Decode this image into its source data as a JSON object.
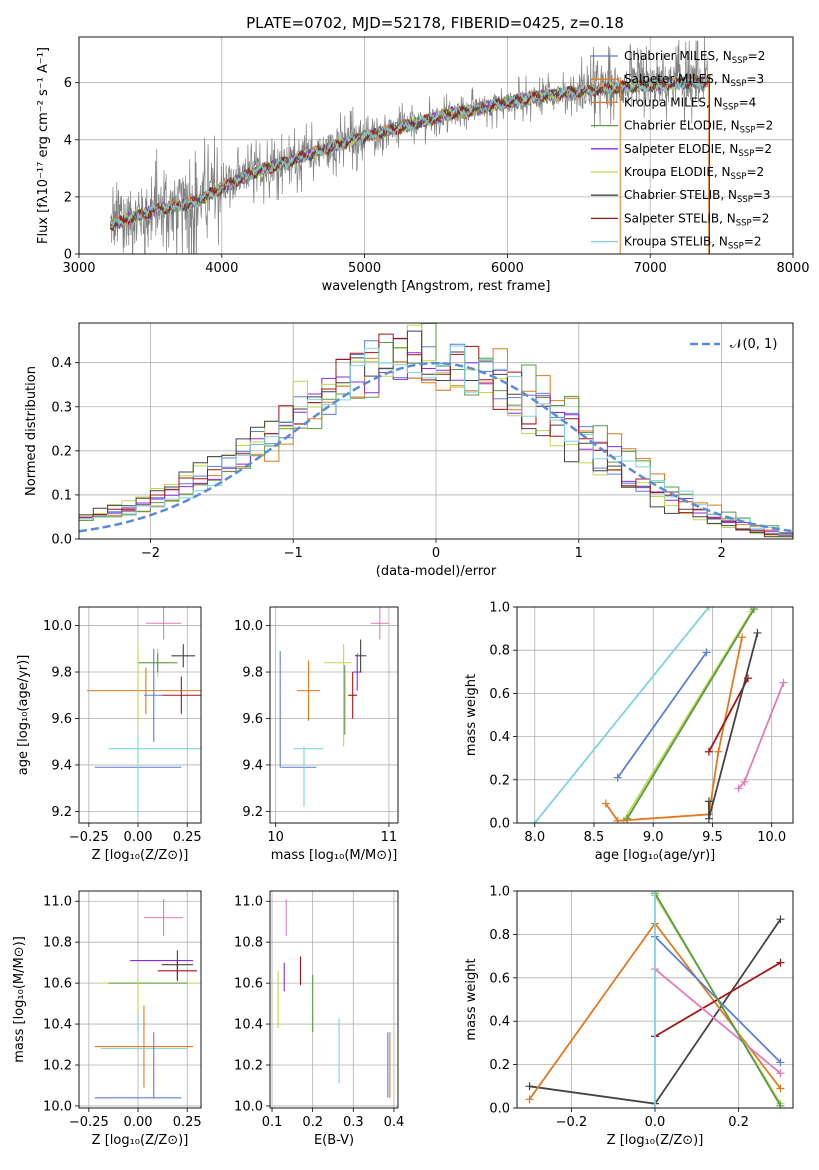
{
  "figure_title": "PLATE=0702, MJD=52178, FIBERID=0425, z=0.18",
  "colors": {
    "blue": "#5b7fd6",
    "orange": "#e07a1f",
    "green": "#5a9a4a",
    "purple": "#8a2be2",
    "yellowgreen": "#bcd94a",
    "darkgray": "#444444",
    "darkred": "#a31515",
    "cyan": "#7fd3dc",
    "pink": "#e27cb7",
    "gray": "#808080",
    "normal": "#5b8bd9"
  },
  "legend_entries": [
    {
      "text": "Chabrier MILES, N",
      "sub": "SSP",
      "tail": "=2",
      "color": "blue"
    },
    {
      "text": "Salpeter MILES, N",
      "sub": "SSP",
      "tail": "=3",
      "color": "orange"
    },
    {
      "text": "Kroupa MILES, N",
      "sub": "SSP",
      "tail": "=4",
      "color": "orange"
    },
    {
      "text": "Chabrier ELODIE, N",
      "sub": "SSP",
      "tail": "=2",
      "color": "green"
    },
    {
      "text": "Salpeter ELODIE, N",
      "sub": "SSP",
      "tail": "=2",
      "color": "purple"
    },
    {
      "text": "Kroupa ELODIE, N",
      "sub": "SSP",
      "tail": "=2",
      "color": "yellowgreen"
    },
    {
      "text": "Chabrier STELIB, N",
      "sub": "SSP",
      "tail": "=3",
      "color": "darkgray"
    },
    {
      "text": "Salpeter STELIB, N",
      "sub": "SSP",
      "tail": "=2",
      "color": "darkred"
    },
    {
      "text": "Kroupa STELIB, N",
      "sub": "SSP",
      "tail": "=2",
      "color": "cyan"
    }
  ],
  "chart_data": [
    {
      "id": "spectrum",
      "type": "line",
      "xlabel": "wavelength [Angstrom, rest frame]",
      "ylabel": "Flux [fλ10⁻¹⁷ erg cm⁻² s⁻¹ A⁻¹]",
      "xlim": [
        3000,
        8000
      ],
      "ylim": [
        0,
        7.6
      ],
      "xticks": [
        3000,
        4000,
        5000,
        6000,
        7000,
        8000
      ],
      "yticks": [
        0,
        2,
        4,
        6
      ],
      "continuum": {
        "x": [
          3220,
          3500,
          3800,
          4000,
          4200,
          4500,
          4800,
          5000,
          5300,
          5600,
          5900,
          6200,
          6500,
          6800,
          7100,
          7400
        ],
        "y": [
          1.0,
          1.5,
          1.8,
          2.3,
          2.8,
          3.3,
          3.8,
          4.1,
          4.5,
          4.9,
          5.2,
          5.5,
          5.7,
          5.85,
          5.95,
          6.05
        ]
      },
      "series_colors": [
        "blue",
        "orange",
        "orange",
        "green",
        "purple",
        "yellowgreen",
        "darkgray",
        "darkred",
        "cyan"
      ]
    },
    {
      "id": "residuals",
      "type": "histogram",
      "xlabel": "(data-model)/error",
      "ylabel": "Normed distribution",
      "xlim": [
        -2.5,
        2.5
      ],
      "ylim": [
        0,
        0.49
      ],
      "xticks": [
        -2,
        -1,
        0,
        1,
        2
      ],
      "yticks": [
        0.0,
        0.1,
        0.2,
        0.3,
        0.4
      ],
      "reference_label": "𝒩(0, 1)",
      "series_colors": [
        "blue",
        "orange",
        "green",
        "purple",
        "yellowgreen",
        "darkgray",
        "darkred",
        "cyan"
      ]
    },
    {
      "id": "age_vs_Z",
      "type": "scatter",
      "xlabel": "Z [log₁₀(Z/Z⊙)]",
      "ylabel": "age  [log₁₀(age/yr)]",
      "xlim": [
        -0.3,
        0.32
      ],
      "ylim": [
        9.15,
        10.08
      ],
      "xticks": [
        -0.25,
        0.0,
        0.25
      ],
      "ytick": [
        9.2,
        9.4,
        9.6,
        9.8,
        10.0
      ],
      "points": [
        {
          "color": "pink",
          "x": 0.13,
          "xerr": 0.09,
          "y": 10.01,
          "yerr": 0.07
        },
        {
          "color": "darkgray",
          "x": 0.23,
          "xerr": 0.06,
          "y": 9.87,
          "yerr": 0.05
        },
        {
          "color": "yellowgreen",
          "x": 0.1,
          "xerr": 0.1,
          "y": 9.84,
          "yerr": 0.06
        },
        {
          "color": "green",
          "x": 0.1,
          "xerr": 0.1,
          "y": 9.84,
          "yerr": 0.04
        },
        {
          "color": "orange",
          "x": 0.04,
          "xerr": 0.3,
          "y": 9.72,
          "yerr": 0.1
        },
        {
          "color": "darkred",
          "x": 0.22,
          "xerr": 0.1,
          "y": 9.7,
          "yerr": 0.08
        },
        {
          "color": "blue",
          "x": 0.08,
          "xerr": 0.05,
          "y": 9.7,
          "yerr": 0.2
        },
        {
          "color": "cyan",
          "x": 0.1,
          "xerr": 0.25,
          "y": 9.47,
          "yerr": 0.0
        },
        {
          "color": "blue",
          "x": 0.0,
          "xerr": 0.22,
          "y": 9.39,
          "yerr": 0.0
        },
        {
          "color": "cyan",
          "x": 0.0,
          "xerr": 0.0,
          "y": 9.35,
          "yerr": 0.17
        },
        {
          "color": "yellowgreen",
          "x": 0.0,
          "xerr": 0.0,
          "y": 9.75,
          "yerr": 0.17
        }
      ]
    },
    {
      "id": "age_vs_mass",
      "type": "scatter",
      "xlabel": "mass [log₁₀(M/M⊙)]",
      "ylabel": "",
      "xlim": [
        9.95,
        11.08
      ],
      "ylim": [
        9.15,
        10.08
      ],
      "xticks": [
        10,
        11
      ],
      "yticks": [
        9.2,
        9.4,
        9.6,
        9.8,
        10.0
      ],
      "points": [
        {
          "color": "pink",
          "x": 10.92,
          "xerr": 0.08,
          "y": 10.01,
          "yerr": 0.07
        },
        {
          "color": "blue",
          "x": 10.04,
          "xerr": 0.0,
          "y": 9.64,
          "yerr": 0.25
        },
        {
          "color": "blue",
          "x": 10.2,
          "xerr": 0.16,
          "y": 9.39,
          "yerr": 0.0
        },
        {
          "color": "orange",
          "x": 10.29,
          "xerr": 0.1,
          "y": 9.72,
          "yerr": 0.13
        },
        {
          "color": "cyan",
          "x": 10.29,
          "xerr": 0.13,
          "y": 9.47,
          "yerr": 0.0
        },
        {
          "color": "cyan",
          "x": 10.25,
          "xerr": 0.0,
          "y": 9.35,
          "yerr": 0.13
        },
        {
          "color": "yellowgreen",
          "x": 10.55,
          "xerr": 0.12,
          "y": 9.84,
          "yerr": 0.0
        },
        {
          "color": "yellowgreen",
          "x": 10.6,
          "xerr": 0.0,
          "y": 9.7,
          "yerr": 0.22
        },
        {
          "color": "green",
          "x": 10.61,
          "xerr": 0.0,
          "y": 9.68,
          "yerr": 0.15
        },
        {
          "color": "darkgray",
          "x": 10.75,
          "xerr": 0.05,
          "y": 9.87,
          "yerr": 0.07
        },
        {
          "color": "purple",
          "x": 10.72,
          "xerr": 0.04,
          "y": 9.8,
          "yerr": 0.08
        },
        {
          "color": "darkred",
          "x": 10.68,
          "xerr": 0.04,
          "y": 9.7,
          "yerr": 0.1
        }
      ]
    },
    {
      "id": "weight_vs_age",
      "type": "line",
      "xlabel": "age  [log₁₀(age/yr)]",
      "ylabel": "mass weight",
      "xlim": [
        7.85,
        10.18
      ],
      "ylim": [
        0,
        1.0
      ],
      "xticks": [
        8.0,
        8.5,
        9.0,
        9.5,
        10.0
      ],
      "yticks": [
        0.0,
        0.2,
        0.4,
        0.6,
        0.8,
        1.0
      ],
      "series": [
        {
          "color": "cyan",
          "x": [
            8.0,
            9.47
          ],
          "y": [
            0.0,
            1.0
          ]
        },
        {
          "color": "blue",
          "x": [
            8.7,
            9.45
          ],
          "y": [
            0.21,
            0.79
          ]
        },
        {
          "color": "yellowgreen",
          "x": [
            8.75,
            9.83
          ],
          "y": [
            0.01,
            0.98
          ]
        },
        {
          "color": "green",
          "x": [
            8.78,
            9.85
          ],
          "y": [
            0.02,
            0.99
          ]
        },
        {
          "color": "orange",
          "x": [
            8.6,
            8.7,
            9.47,
            9.55,
            9.75
          ],
          "y": [
            0.09,
            0.01,
            0.04,
            0.33,
            0.86
          ]
        },
        {
          "color": "darkred",
          "x": [
            9.47,
            9.8
          ],
          "y": [
            0.33,
            0.67
          ]
        },
        {
          "color": "darkgray",
          "x": [
            9.47,
            9.47,
            9.88
          ],
          "y": [
            0.1,
            0.02,
            0.88
          ]
        },
        {
          "color": "pink",
          "x": [
            9.72,
            9.77,
            10.1
          ],
          "y": [
            0.16,
            0.19,
            0.65
          ]
        }
      ]
    },
    {
      "id": "mass_vs_Z",
      "type": "scatter",
      "xlabel": "Z [log₁₀(Z/Z⊙)]",
      "ylabel": "mass [log₁₀(M/M⊙)]",
      "xlim": [
        -0.3,
        0.32
      ],
      "ylim": [
        9.99,
        11.05
      ],
      "xticks": [
        -0.25,
        0.0,
        0.25
      ],
      "yticks": [
        10.0,
        10.2,
        10.4,
        10.6,
        10.8,
        11.0
      ],
      "points": [
        {
          "color": "pink",
          "x": 0.13,
          "xerr": 0.1,
          "y": 10.92,
          "yerr": 0.09
        },
        {
          "color": "purple",
          "x": 0.12,
          "xerr": 0.16,
          "y": 10.71,
          "yerr": 0.0
        },
        {
          "color": "darkgray",
          "x": 0.2,
          "xerr": 0.08,
          "y": 10.69,
          "yerr": 0.07
        },
        {
          "color": "darkred",
          "x": 0.2,
          "xerr": 0.1,
          "y": 10.66,
          "yerr": 0.05
        },
        {
          "color": "yellowgreen",
          "x": 0.05,
          "xerr": 0.25,
          "y": 10.6,
          "yerr": 0.0
        },
        {
          "color": "green",
          "x": 0.05,
          "xerr": 0.2,
          "y": 10.6,
          "yerr": 0.0
        },
        {
          "color": "yellowgreen",
          "x": 0.0,
          "xerr": 0.0,
          "y": 10.5,
          "yerr": 0.12
        },
        {
          "color": "cyan",
          "x": 0.0,
          "xerr": 0.0,
          "y": 10.4,
          "yerr": 0.05
        },
        {
          "color": "orange",
          "x": 0.03,
          "xerr": 0.25,
          "y": 10.29,
          "yerr": 0.2
        },
        {
          "color": "cyan",
          "x": 0.03,
          "xerr": 0.22,
          "y": 10.28,
          "yerr": 0.0
        },
        {
          "color": "blue",
          "x": 0.08,
          "xerr": 0.0,
          "y": 10.2,
          "yerr": 0.16
        },
        {
          "color": "blue",
          "x": 0.0,
          "xerr": 0.22,
          "y": 10.04,
          "yerr": 0.0
        }
      ]
    },
    {
      "id": "mass_vs_EBV",
      "type": "scatter",
      "xlabel": "E(B-V)",
      "ylabel": "",
      "xlim": [
        0.095,
        0.41
      ],
      "ylim": [
        9.99,
        11.05
      ],
      "xticks": [
        0.1,
        0.2,
        0.3,
        0.4
      ],
      "yticks": [
        10.0,
        10.2,
        10.4,
        10.6,
        10.8,
        11.0
      ],
      "points": [
        {
          "color": "pink",
          "x": 0.135,
          "xerr": 0.0,
          "y": 10.92,
          "yerr": 0.09
        },
        {
          "color": "purple",
          "x": 0.13,
          "xerr": 0.0,
          "y": 10.63,
          "yerr": 0.07
        },
        {
          "color": "darkred",
          "x": 0.17,
          "xerr": 0.0,
          "y": 10.66,
          "yerr": 0.07
        },
        {
          "color": "yellowgreen",
          "x": 0.115,
          "xerr": 0.0,
          "y": 10.52,
          "yerr": 0.14
        },
        {
          "color": "green",
          "x": 0.2,
          "xerr": 0.0,
          "y": 10.5,
          "yerr": 0.14
        },
        {
          "color": "cyan",
          "x": 0.265,
          "xerr": 0.0,
          "y": 10.27,
          "yerr": 0.16
        },
        {
          "color": "blue",
          "x": 0.385,
          "xerr": 0.0,
          "y": 10.2,
          "yerr": 0.16
        },
        {
          "color": "orange",
          "x": 0.39,
          "xerr": 0.0,
          "y": 10.2,
          "yerr": 0.16
        }
      ]
    },
    {
      "id": "weight_vs_Z",
      "type": "line",
      "xlabel": "Z [log₁₀(Z/Z⊙)]",
      "ylabel": "mass weight",
      "xlim": [
        -0.33,
        0.33
      ],
      "ylim": [
        0,
        1.0
      ],
      "xticks": [
        -0.2,
        0.0,
        0.2
      ],
      "yticks": [
        0.0,
        0.2,
        0.4,
        0.6,
        0.8,
        1.0
      ],
      "series": [
        {
          "color": "darkgray",
          "x": [
            -0.3,
            0.0,
            0.3
          ],
          "y": [
            0.1,
            0.02,
            0.87
          ]
        },
        {
          "color": "orange",
          "x": [
            -0.3,
            0.0,
            0.3
          ],
          "y": [
            0.04,
            0.85,
            0.09
          ]
        },
        {
          "color": "darkred",
          "x": [
            0.0,
            0.3
          ],
          "y": [
            0.33,
            0.67
          ]
        },
        {
          "color": "blue",
          "x": [
            0.0,
            0.3
          ],
          "y": [
            0.79,
            0.21
          ]
        },
        {
          "color": "pink",
          "x": [
            0.0,
            0.3
          ],
          "y": [
            0.64,
            0.16
          ]
        },
        {
          "color": "yellowgreen",
          "x": [
            0.0,
            0.3
          ],
          "y": [
            0.98,
            0.02
          ]
        },
        {
          "color": "green",
          "x": [
            0.0,
            0.3
          ],
          "y": [
            0.99,
            0.01
          ]
        },
        {
          "color": "cyan",
          "x": [
            0.0,
            0.0
          ],
          "y": [
            0.0,
            1.0
          ]
        }
      ]
    }
  ]
}
